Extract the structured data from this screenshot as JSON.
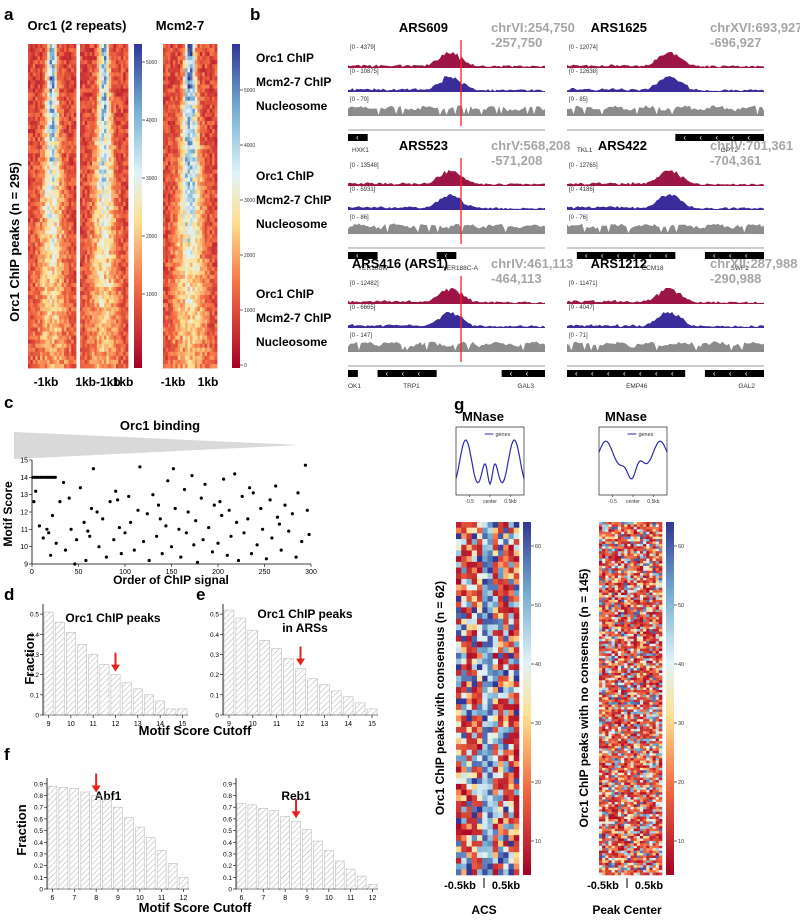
{
  "colors": {
    "orc": "#9c1546",
    "mcm": "#3a2c9a",
    "nuc": "#8c8c8c",
    "marker": "#ff2020",
    "arrow": "#e8201a",
    "coord": "#a6a6a6"
  },
  "panel_a": {
    "label": "a",
    "title_orc": "Orc1 (2 repeats)",
    "title_mcm": "Mcm2-7",
    "ylabel": "Orc1 ChIP peaks (n = 295)",
    "xticks_orc": [
      "-1kb",
      "1kb-1kb",
      "1kb"
    ],
    "xticks_mcm": [
      "-1kb",
      "1kb"
    ],
    "colorbar1_ticks": [
      "5000",
      "4000",
      "3000",
      "2000",
      "1000"
    ],
    "colorbar2_ticks": [
      "5000",
      "4000",
      "3000",
      "2000",
      "1000",
      "0"
    ]
  },
  "panel_b": {
    "label": "b",
    "track_labels": [
      "Orc1 ChIP",
      "Mcm2-7 ChIP",
      "Nucleosome"
    ],
    "loci": [
      {
        "name": "ARS609",
        "coord1": "chrVI:254,750",
        "coord2": "-257,750",
        "ranges": [
          "[0 - 4379]",
          "[0 - 10875]",
          "[0 - 70]"
        ],
        "genes": [
          "HXK1"
        ]
      },
      {
        "name": "ARS1625",
        "coord1": "chrXVI:693,927",
        "coord2": "-696,927",
        "ranges": [
          "[0 - 12074]",
          "[0 - 12638]",
          "[0 - 85]"
        ],
        "genes": [
          "TKL1",
          "OPY2"
        ]
      },
      {
        "name": "ARS523",
        "coord1": "chrV:568,208",
        "coord2": "-571,208",
        "ranges": [
          "[0 - 13548]",
          "[0 - 5931]",
          "[0 - 86]"
        ],
        "genes": [
          "YER188W",
          "YER188C-A"
        ]
      },
      {
        "name": "ARS422",
        "coord1": "chrIV:701,361",
        "coord2": "-704,361",
        "ranges": [
          "[0 - 12765]",
          "[0 - 4186]",
          "[0 - 76]"
        ],
        "genes": [
          "ECM18",
          "SWF1"
        ]
      },
      {
        "name": "ARS416 (ARS1)",
        "coord1": "chrIV:461,113",
        "coord2": "-464,113",
        "ranges": [
          "[0 - 12482]",
          "[0 - 6665]",
          "[0 - 147]"
        ],
        "genes": [
          "OK1",
          "TRP1",
          "GAL3"
        ]
      },
      {
        "name": "ARS1212",
        "coord1": "chrXII:287,988",
        "coord2": "-290,988",
        "ranges": [
          "[0 - 11471]",
          "[0 - 4047]",
          "[0 - 71]"
        ],
        "genes": [
          "EMP46",
          "GAL2"
        ]
      }
    ]
  },
  "panel_c": {
    "label": "c",
    "title": "Orc1 binding",
    "xlabel": "Order of ChIP signal",
    "ylabel": "Motif Score",
    "xticks": [
      "0",
      "50",
      "100",
      "150",
      "200",
      "250",
      "300"
    ],
    "yticks": [
      "9",
      "10",
      "11",
      "12",
      "13",
      "14",
      "15"
    ]
  },
  "panel_d": {
    "label": "d",
    "title": "Orc1 ChIP peaks"
  },
  "panel_e": {
    "label": "e",
    "title1": "Orc1 ChIP peaks",
    "title2": "in ARSs"
  },
  "panel_de_shared": {
    "ylabel": "Fraction",
    "xlabel": "Motif Score Cutoff",
    "xticks": [
      "9",
      "10",
      "11",
      "12",
      "13",
      "14",
      "15"
    ],
    "yticks": [
      "0",
      "0.1",
      "0.2",
      "0.3",
      "0.4",
      "0.5"
    ]
  },
  "panel_f": {
    "label": "f",
    "ylabel": "Fraction",
    "xlabel": "Motif Score Cutoff",
    "titles": [
      "Abf1",
      "Reb1"
    ],
    "xticks": [
      "6",
      "7",
      "8",
      "9",
      "10",
      "11",
      "12"
    ],
    "yticks": [
      "0",
      "0.1",
      "0.2",
      "0.3",
      "0.4",
      "0.5",
      "0.6",
      "0.7",
      "0.8",
      "0.9"
    ]
  },
  "panel_g": {
    "label": "g",
    "titles": [
      "MNase",
      "MNase"
    ],
    "legend": "genes",
    "profile_xticks_left": [
      "-0.5",
      "center",
      "0.5kb"
    ],
    "profile_xticks_right": [
      "-0.5",
      "center",
      "0.5kb"
    ],
    "ylabel_left": "Orc1 ChIP peaks with consensus (n = 62)",
    "ylabel_right": "Orc1 ChIP peaks with no consensus (n = 145)",
    "xticks": [
      "-0.5kb",
      "0.5kb"
    ],
    "xlabels": [
      "ACS",
      "Peak Center"
    ],
    "colorbar_ticks": [
      "60",
      "50",
      "40",
      "30",
      "20",
      "10"
    ]
  },
  "chart_data": [
    {
      "panel": "c",
      "type": "scatter",
      "title": "Orc1 binding",
      "xlabel": "Order of ChIP signal",
      "ylabel": "Motif Score",
      "xlim": [
        0,
        300
      ],
      "ylim": [
        9,
        15
      ],
      "points": [
        [
          1,
          14
        ],
        [
          3,
          14
        ],
        [
          5,
          14
        ],
        [
          7,
          14
        ],
        [
          9,
          14
        ],
        [
          11,
          14
        ],
        [
          13,
          14
        ],
        [
          15,
          14
        ],
        [
          17,
          14
        ],
        [
          19,
          14
        ],
        [
          21,
          14
        ],
        [
          23,
          14
        ],
        [
          25,
          14
        ],
        [
          4,
          13.2
        ],
        [
          2,
          12.6
        ],
        [
          8,
          11.2
        ],
        [
          12,
          10.5
        ],
        [
          16,
          11
        ],
        [
          18,
          10.8
        ],
        [
          20,
          9.5
        ],
        [
          22,
          11.8
        ],
        [
          26,
          10.2
        ],
        [
          30,
          12.6
        ],
        [
          34,
          13.7
        ],
        [
          36,
          9.8
        ],
        [
          40,
          12.8
        ],
        [
          42,
          11
        ],
        [
          46,
          9
        ],
        [
          48,
          10.4
        ],
        [
          52,
          13.4
        ],
        [
          56,
          11.4
        ],
        [
          58,
          9.2
        ],
        [
          62,
          10.6
        ],
        [
          64,
          12.2
        ],
        [
          66,
          14.5
        ],
        [
          70,
          12
        ],
        [
          72,
          10
        ],
        [
          76,
          11.6
        ],
        [
          80,
          9.4
        ],
        [
          84,
          12.6
        ],
        [
          88,
          10.4
        ],
        [
          90,
          13.2
        ],
        [
          94,
          11.1
        ],
        [
          96,
          9.6
        ],
        [
          100,
          10.8
        ],
        [
          104,
          12.9
        ],
        [
          106,
          11.4
        ],
        [
          110,
          9.8
        ],
        [
          114,
          12.1
        ],
        [
          116,
          14.6
        ],
        [
          120,
          10.3
        ],
        [
          124,
          11.9
        ],
        [
          126,
          9.2
        ],
        [
          130,
          13
        ],
        [
          134,
          10.6
        ],
        [
          136,
          12.4
        ],
        [
          140,
          9.6
        ],
        [
          144,
          11.2
        ],
        [
          146,
          13.8
        ],
        [
          150,
          10
        ],
        [
          152,
          14.5
        ],
        [
          154,
          12.2
        ],
        [
          158,
          11
        ],
        [
          160,
          9.4
        ],
        [
          164,
          13.3
        ],
        [
          166,
          10.8
        ],
        [
          168,
          12
        ],
        [
          172,
          14.1
        ],
        [
          176,
          11.5
        ],
        [
          178,
          9.1
        ],
        [
          182,
          12.8
        ],
        [
          184,
          10.4
        ],
        [
          186,
          13.6
        ],
        [
          190,
          11.1
        ],
        [
          194,
          9.7
        ],
        [
          196,
          12.4
        ],
        [
          200,
          10.2
        ],
        [
          204,
          11.8
        ],
        [
          206,
          13.9
        ],
        [
          210,
          9.5
        ],
        [
          212,
          12.1
        ],
        [
          214,
          10.6
        ],
        [
          218,
          14.2
        ],
        [
          220,
          11.4
        ],
        [
          222,
          9.2
        ],
        [
          226,
          12.9
        ],
        [
          228,
          10.8
        ],
        [
          232,
          11.6
        ],
        [
          236,
          9.6
        ],
        [
          238,
          13.1
        ],
        [
          242,
          10.1
        ],
        [
          246,
          12.2
        ],
        [
          248,
          11
        ],
        [
          252,
          9.3
        ],
        [
          256,
          12.7
        ],
        [
          258,
          10.5
        ],
        [
          262,
          13.5
        ],
        [
          266,
          11.3
        ],
        [
          268,
          9.8
        ],
        [
          272,
          12.4
        ],
        [
          276,
          10.9
        ],
        [
          280,
          11.9
        ],
        [
          284,
          9.4
        ],
        [
          286,
          13.1
        ],
        [
          290,
          10.3
        ],
        [
          294,
          14.7
        ],
        [
          296,
          12.1
        ],
        [
          298,
          10.7
        ],
        [
          60,
          10.9
        ],
        [
          92,
          12.7
        ],
        [
          138,
          11.6
        ],
        [
          174,
          10.1
        ],
        [
          202,
          12.6
        ],
        [
          234,
          13.4
        ],
        [
          264,
          11.7
        ]
      ]
    },
    {
      "panel": "d",
      "type": "bar",
      "title": "Orc1 ChIP peaks",
      "xlabel": "Motif Score Cutoff",
      "ylabel": "Fraction",
      "categories": [
        "9",
        "9.5",
        "10",
        "10.5",
        "11",
        "11.5",
        "12",
        "12.5",
        "13",
        "13.5",
        "14",
        "14.5",
        "15"
      ],
      "values": [
        0.51,
        0.46,
        0.41,
        0.35,
        0.3,
        0.25,
        0.2,
        0.16,
        0.13,
        0.1,
        0.07,
        0.03,
        0.03
      ],
      "ylim": [
        0,
        0.55
      ],
      "highlight": "12"
    },
    {
      "panel": "e",
      "type": "bar",
      "title": "Orc1 ChIP peaks in ARSs",
      "xlabel": "Motif Score Cutoff",
      "ylabel": "Fraction",
      "categories": [
        "9",
        "9.5",
        "10",
        "10.5",
        "11",
        "11.5",
        "12",
        "12.5",
        "13",
        "13.5",
        "14",
        "14.5",
        "15"
      ],
      "values": [
        0.52,
        0.48,
        0.42,
        0.37,
        0.33,
        0.28,
        0.23,
        0.18,
        0.15,
        0.12,
        0.09,
        0.06,
        0.03
      ],
      "ylim": [
        0,
        0.55
      ],
      "highlight": "12"
    },
    {
      "panel": "f",
      "type": "bar",
      "title": "Abf1",
      "xlabel": "Motif Score Cutoff",
      "ylabel": "Fraction",
      "categories": [
        "6",
        "6.5",
        "7",
        "7.5",
        "8",
        "8.5",
        "9",
        "9.5",
        "10",
        "10.5",
        "11",
        "11.5",
        "12"
      ],
      "values": [
        0.88,
        0.87,
        0.86,
        0.83,
        0.8,
        0.77,
        0.7,
        0.61,
        0.53,
        0.44,
        0.33,
        0.22,
        0.1
      ],
      "ylim": [
        0,
        0.95
      ],
      "highlight": "8"
    },
    {
      "panel": "f",
      "type": "bar",
      "title": "Reb1",
      "xlabel": "Motif Score Cutoff",
      "ylabel": "Fraction",
      "categories": [
        "6",
        "6.5",
        "7",
        "7.5",
        "8",
        "8.5",
        "9",
        "9.5",
        "10",
        "10.5",
        "11",
        "11.5",
        "12"
      ],
      "values": [
        0.73,
        0.72,
        0.69,
        0.67,
        0.62,
        0.58,
        0.51,
        0.41,
        0.33,
        0.24,
        0.17,
        0.11,
        0.04
      ],
      "ylim": [
        0,
        0.95
      ],
      "highlight": "8.5"
    }
  ]
}
